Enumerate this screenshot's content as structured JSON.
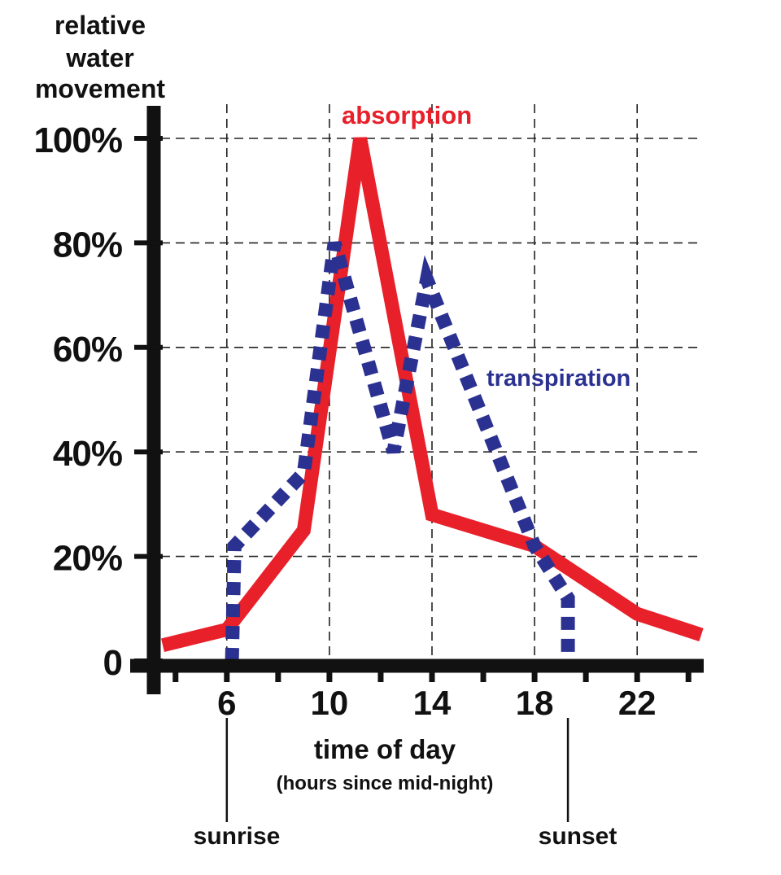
{
  "chart_data": {
    "type": "line",
    "ylabel_lines": [
      "relative",
      "water",
      "movement"
    ],
    "xlabel": "time  of  day",
    "xlabel_sub": "(hours  since  mid-night)",
    "yticks": [
      {
        "value": 0,
        "label": "0"
      },
      {
        "value": 20,
        "label": "20%"
      },
      {
        "value": 40,
        "label": "40%"
      },
      {
        "value": 60,
        "label": "60%"
      },
      {
        "value": 80,
        "label": "80%"
      },
      {
        "value": 100,
        "label": "100%"
      }
    ],
    "xticks": [
      {
        "value": 6,
        "label": "6"
      },
      {
        "value": 10,
        "label": "10"
      },
      {
        "value": 14,
        "label": "14"
      },
      {
        "value": 18,
        "label": "18"
      },
      {
        "value": 22,
        "label": "22"
      }
    ],
    "xlim": [
      3.5,
      24.5
    ],
    "ylim": [
      0,
      100
    ],
    "grid": true,
    "series": [
      {
        "name": "absorption",
        "color": "#e8202a",
        "style": "solid",
        "x": [
          3.5,
          6,
          9,
          11.2,
          14,
          18,
          22,
          24.5
        ],
        "y": [
          3,
          6,
          25,
          100,
          28,
          22,
          9,
          5
        ]
      },
      {
        "name": "transpiration",
        "color": "#2b3191",
        "style": "dotted",
        "x": [
          6.2,
          6.3,
          9,
          10.2,
          12.5,
          13.8,
          18,
          19.3,
          19.3
        ],
        "y": [
          0,
          22,
          36,
          80,
          40,
          73,
          22,
          12,
          0
        ]
      }
    ],
    "annotations": [
      {
        "text": "sunrise",
        "x": 6
      },
      {
        "text": "sunset",
        "x": 19.3
      }
    ]
  }
}
